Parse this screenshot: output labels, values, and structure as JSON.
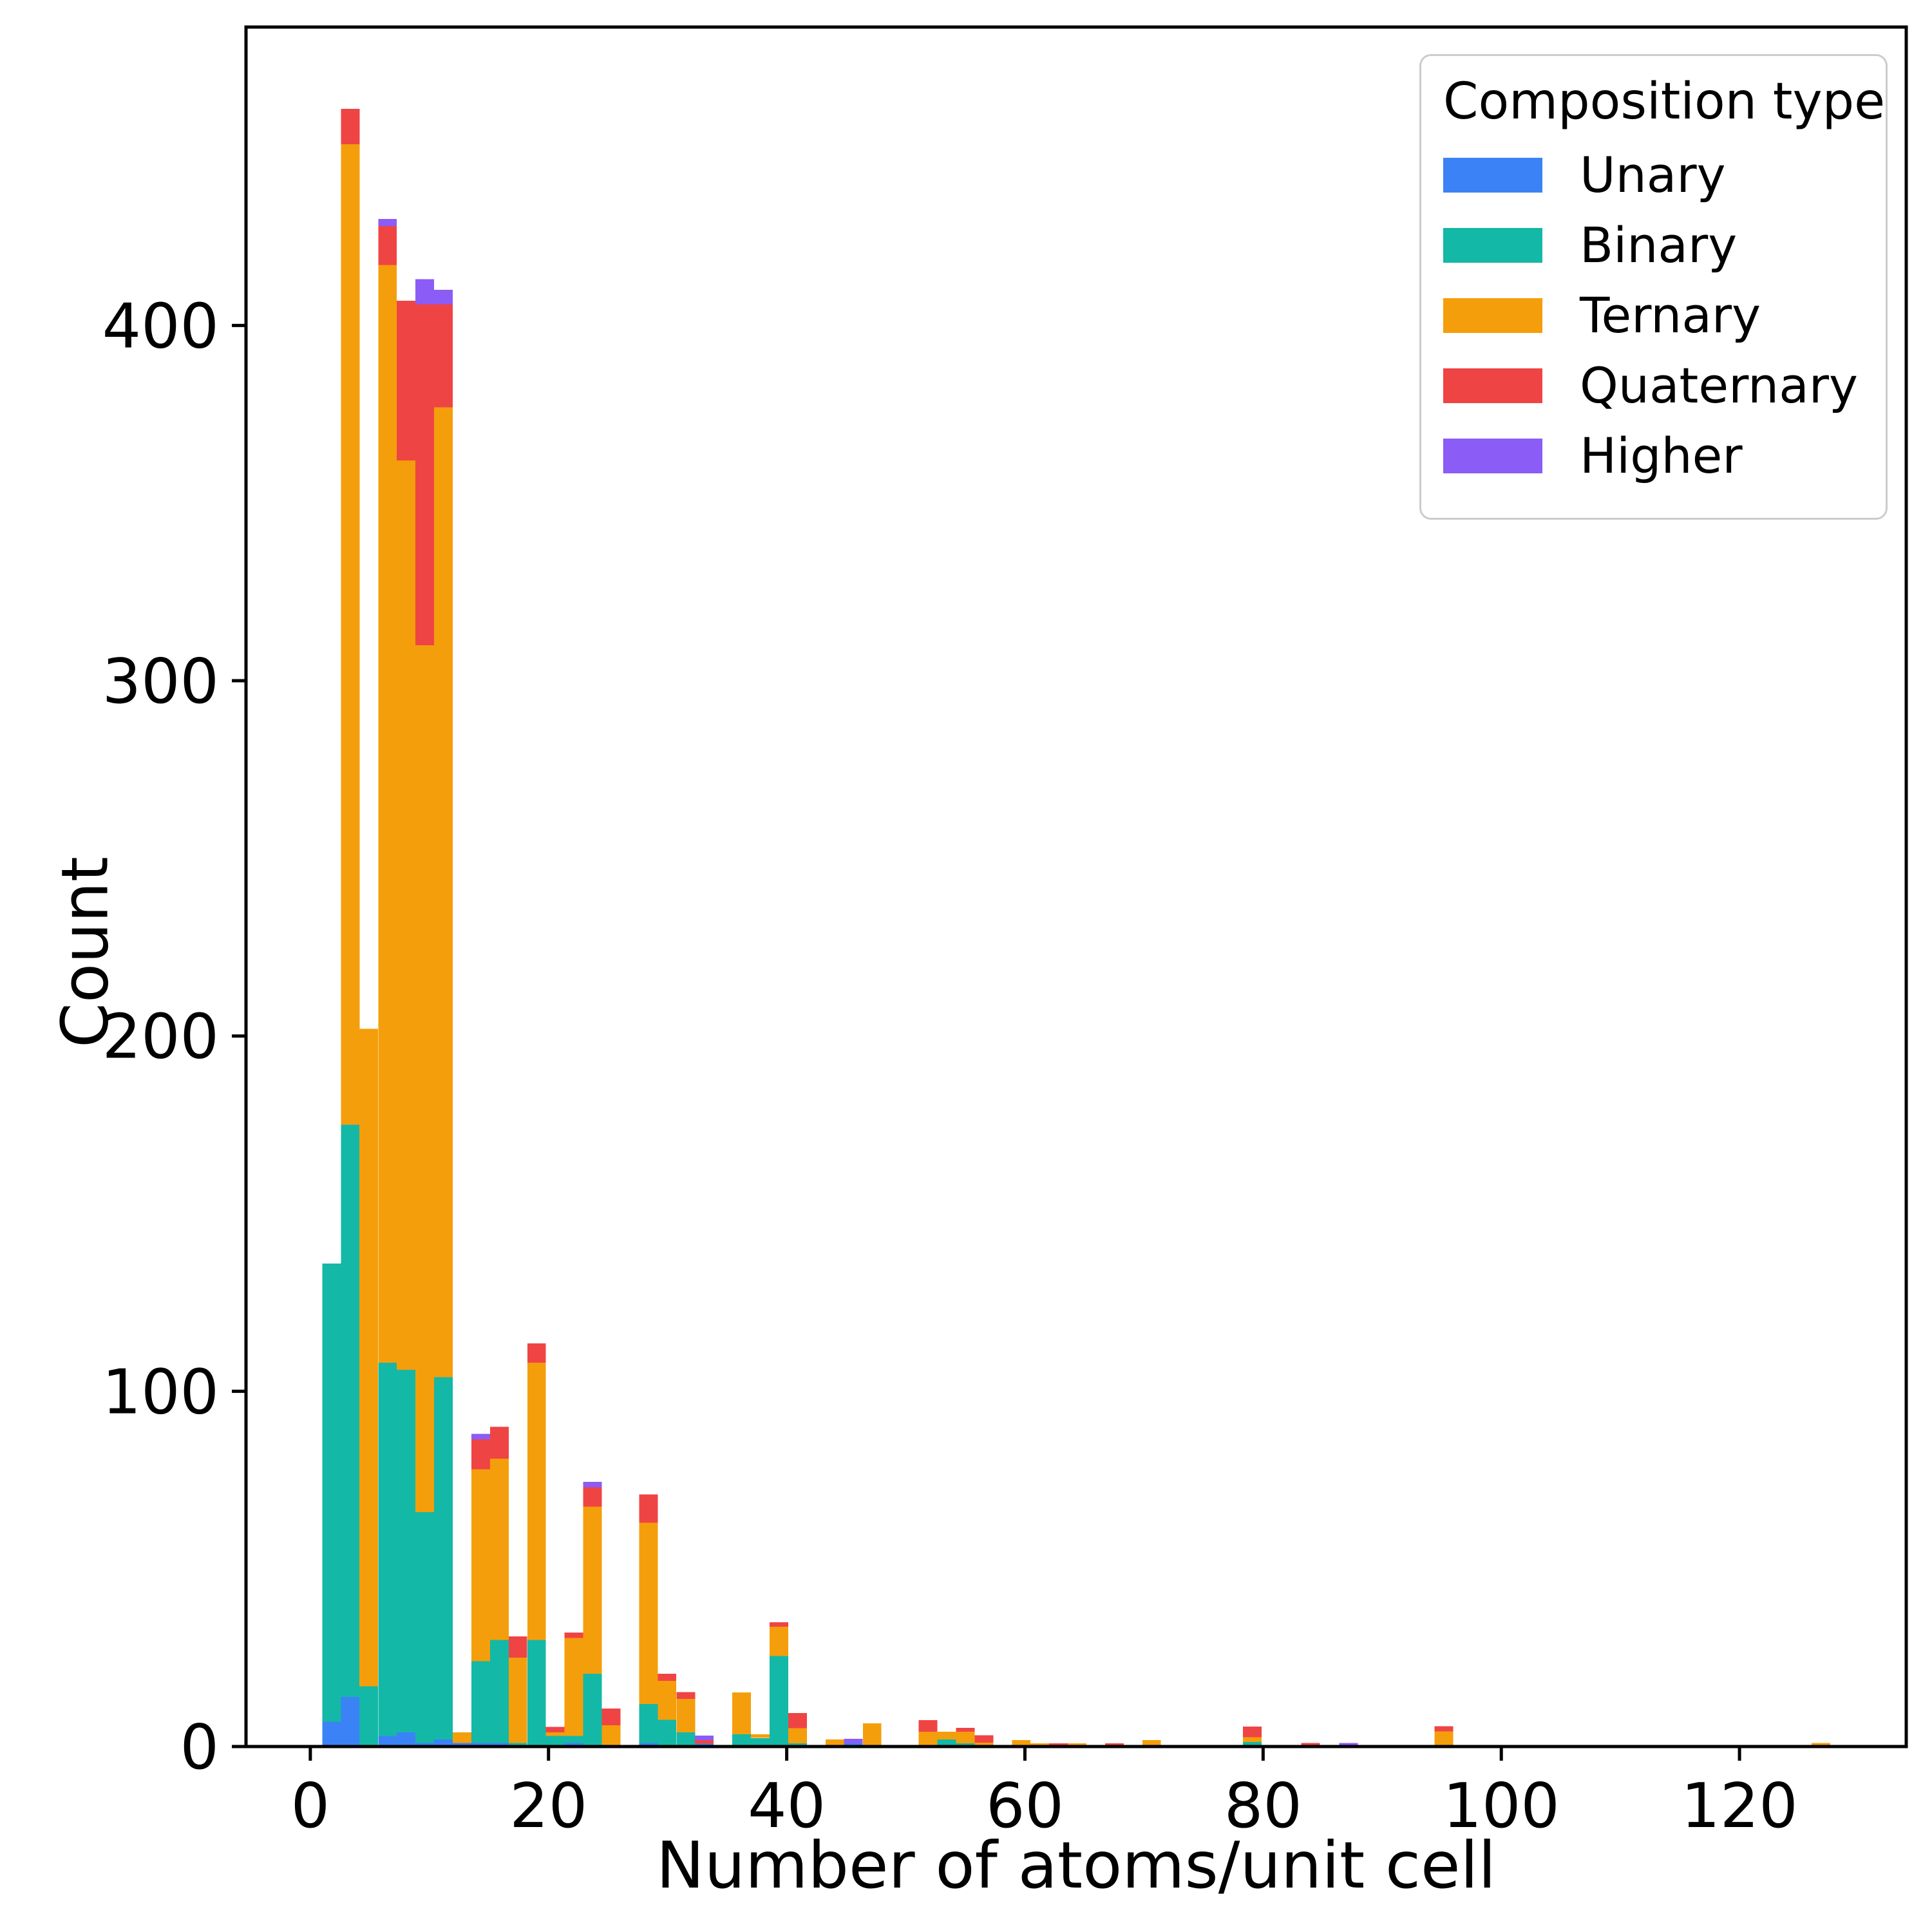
{
  "chart_data": {
    "type": "bar",
    "subtype": "stacked-histogram",
    "title": "",
    "xlabel": "Number of atoms/unit cell",
    "ylabel": "Count",
    "xlim": [
      -5.4,
      134.0
    ],
    "ylim": [
      0,
      484
    ],
    "x_ticks": [
      0,
      20,
      40,
      60,
      80,
      100,
      120
    ],
    "y_ticks": [
      0,
      100,
      200,
      300,
      400
    ],
    "grid": false,
    "bin_width": 1.565,
    "legend": {
      "title": "Composition type",
      "position": "upper right"
    },
    "series": [
      {
        "name": "Unary",
        "color": "#3b82f6"
      },
      {
        "name": "Binary",
        "color": "#14b8a6"
      },
      {
        "name": "Ternary",
        "color": "#f59e0b"
      },
      {
        "name": "Quaternary",
        "color": "#ef4444"
      },
      {
        "name": "Higher",
        "color": "#8b5cf6"
      }
    ],
    "bars_note": "x = left bin edge (atoms/unit cell); counts = [Unary, Binary, Ternary, Quaternary, Higher] stacked bottom-to-top",
    "bars": [
      {
        "x": 1.0,
        "counts": [
          7,
          129,
          0,
          0,
          0
        ]
      },
      {
        "x": 2.57,
        "counts": [
          14,
          161,
          276,
          10,
          0
        ]
      },
      {
        "x": 4.13,
        "counts": [
          0,
          17,
          185,
          0,
          0
        ]
      },
      {
        "x": 5.7,
        "counts": [
          3,
          105,
          309,
          11,
          2
        ]
      },
      {
        "x": 7.26,
        "counts": [
          4,
          102,
          256,
          45,
          0
        ]
      },
      {
        "x": 8.83,
        "counts": [
          1,
          65,
          244,
          96,
          7
        ]
      },
      {
        "x": 10.39,
        "counts": [
          2,
          102,
          273,
          29,
          4
        ]
      },
      {
        "x": 11.96,
        "counts": [
          1,
          0,
          3,
          0,
          0
        ]
      },
      {
        "x": 13.52,
        "counts": [
          1,
          23,
          54,
          8.5,
          1.5
        ]
      },
      {
        "x": 15.09,
        "counts": [
          1,
          29,
          51,
          9,
          0
        ]
      },
      {
        "x": 16.65,
        "counts": [
          0,
          1,
          24,
          6,
          0
        ]
      },
      {
        "x": 18.22,
        "counts": [
          0,
          30,
          78,
          5.5,
          0
        ]
      },
      {
        "x": 19.78,
        "counts": [
          0,
          3,
          1,
          1.5,
          0
        ]
      },
      {
        "x": 21.35,
        "counts": [
          1,
          2,
          27.5,
          1.6,
          0
        ]
      },
      {
        "x": 22.91,
        "counts": [
          0,
          20.5,
          47,
          5.5,
          1.5
        ]
      },
      {
        "x": 24.48,
        "counts": [
          0,
          0,
          6,
          4.7,
          0
        ]
      },
      {
        "x": 27.61,
        "counts": [
          1,
          11,
          51,
          8,
          0
        ]
      },
      {
        "x": 29.17,
        "counts": [
          0,
          7.5,
          11,
          2,
          0
        ]
      },
      {
        "x": 30.74,
        "counts": [
          0,
          4,
          9.4,
          1.9,
          0
        ]
      },
      {
        "x": 32.3,
        "counts": [
          0.8,
          0,
          0,
          1,
          1.3
        ]
      },
      {
        "x": 35.43,
        "counts": [
          0,
          3.4,
          11.8,
          0,
          0
        ]
      },
      {
        "x": 37.0,
        "counts": [
          0,
          2.4,
          1,
          0,
          0
        ]
      },
      {
        "x": 38.56,
        "counts": [
          0,
          25.5,
          8.2,
          1.3,
          0
        ]
      },
      {
        "x": 40.13,
        "counts": [
          0,
          0.9,
          4.3,
          4.2,
          0
        ]
      },
      {
        "x": 43.26,
        "counts": [
          0,
          0.5,
          1.5,
          0,
          0
        ]
      },
      {
        "x": 44.82,
        "counts": [
          0.9,
          0,
          0,
          0,
          1.3
        ]
      },
      {
        "x": 46.39,
        "counts": [
          0,
          0,
          6.5,
          0,
          0
        ]
      },
      {
        "x": 51.08,
        "counts": [
          0,
          0,
          4.2,
          3.2,
          0
        ]
      },
      {
        "x": 52.65,
        "counts": [
          0,
          2,
          2.2,
          0,
          0
        ]
      },
      {
        "x": 54.21,
        "counts": [
          0,
          0.9,
          3.3,
          1.1,
          0
        ]
      },
      {
        "x": 55.78,
        "counts": [
          0,
          0,
          1.1,
          2.1,
          0
        ]
      },
      {
        "x": 58.91,
        "counts": [
          0,
          0,
          1.8,
          0,
          0
        ]
      },
      {
        "x": 60.47,
        "counts": [
          0,
          0,
          0.9,
          0,
          0
        ]
      },
      {
        "x": 62.04,
        "counts": [
          0,
          0,
          0,
          0.9,
          0
        ]
      },
      {
        "x": 63.6,
        "counts": [
          0,
          0,
          0.9,
          0,
          0
        ]
      },
      {
        "x": 66.73,
        "counts": [
          0,
          0,
          0,
          0.9,
          0
        ]
      },
      {
        "x": 69.86,
        "counts": [
          0,
          0,
          1.8,
          0,
          0
        ]
      },
      {
        "x": 78.3,
        "counts": [
          0,
          1.3,
          1.3,
          3,
          0
        ]
      },
      {
        "x": 83.2,
        "counts": [
          0,
          0,
          0,
          1,
          0
        ]
      },
      {
        "x": 86.4,
        "counts": [
          0,
          0,
          0,
          0,
          1
        ]
      },
      {
        "x": 94.4,
        "counts": [
          0,
          0,
          4.3,
          1.4,
          0
        ]
      },
      {
        "x": 126.05,
        "counts": [
          0,
          0,
          1,
          0,
          0
        ]
      }
    ]
  }
}
